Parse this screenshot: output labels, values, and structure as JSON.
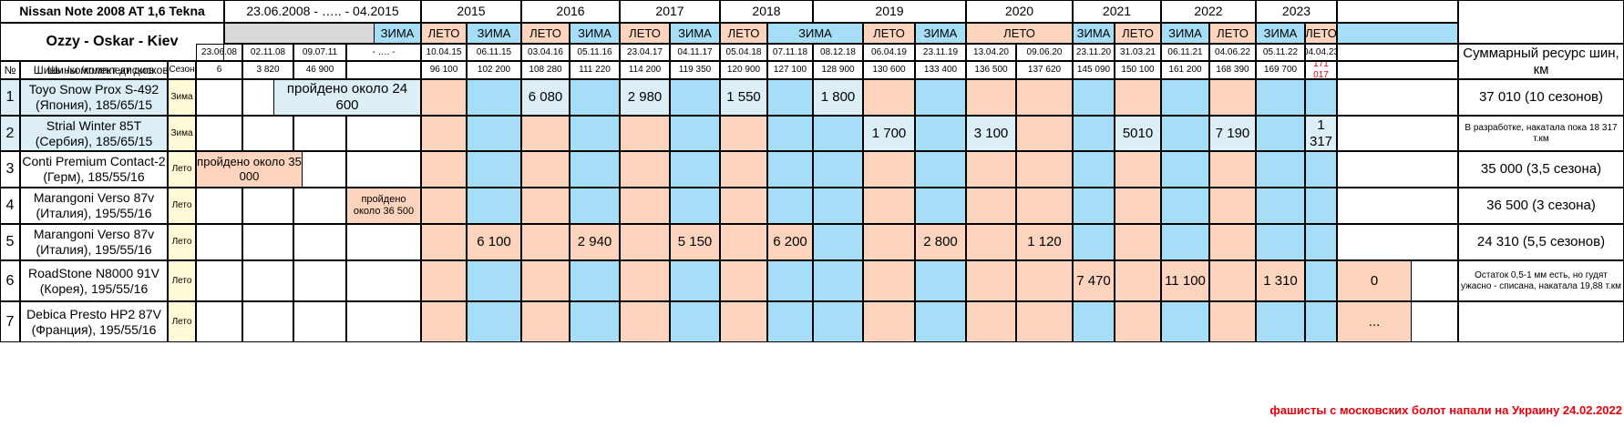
{
  "title": "Nissan Note 2008 AT 1,6 Tekna",
  "owner": "Ozzy - Oskar - Kiev",
  "period": "23.06.2008 - ….. - 04.2015",
  "years": [
    "2015",
    "2016",
    "2017",
    "2018",
    "2019",
    "2020",
    "2021",
    "2022",
    "2023"
  ],
  "season_labels": {
    "zima": "ЗИМА",
    "leto": "ЛЕТО"
  },
  "header": {
    "num": "№",
    "tires": "Шины /комплект дисков",
    "season": "Сезон",
    "total": "Суммарный ресурс шин, км"
  },
  "dates": [
    "23.06.08",
    "02.11.08",
    "09.07.11",
    "- …. -",
    "10.04.15",
    "06.11.15",
    "03.04.16",
    "05.11.16",
    "23.04.17",
    "04.11.17",
    "05.04.18",
    "07.11.18",
    "08.12.18",
    "06.04.19",
    "23.11.19",
    "13.04.20",
    "09.06.20",
    "23.11.20",
    "31.03.21",
    "06.11.21",
    "04.06.22",
    "05.11.22",
    "04.04.23"
  ],
  "odometer": [
    "6",
    "3 820",
    "46 900",
    "",
    "96 100",
    "102 200",
    "108 280",
    "111 220",
    "114 200",
    "119 350",
    "120 900",
    "127 100",
    "128 900",
    "130 600",
    "133 400",
    "136 500",
    "137 620",
    "145 090",
    "150 100",
    "161 200",
    "168 390",
    "169 700",
    "171 017"
  ],
  "rows": [
    {
      "num": "1",
      "tire": "Toyo Snow Prox S-492 (Япония), 185/65/15",
      "season": "Зима",
      "total": "37 010 (10 сезонов)",
      "note": "пройдено около 24 600",
      "values": {
        "z2016": "6 080",
        "z2017": "2 980",
        "z2018": "1 550",
        "z2019": "1 800"
      }
    },
    {
      "num": "2",
      "tire": "Strial Winter 85T (Сербия), 185/65/15",
      "season": "Зима",
      "total": "В разработке, накатала пока 18 317  т.км",
      "values": {
        "z2019": "1 700",
        "z2020": "3 100",
        "z2021": "5010",
        "z2022": "7 190",
        "z2023": "1 317"
      }
    },
    {
      "num": "3",
      "tire": "Conti Premium Contact-2  (Герм), 185/55/16",
      "season": "Лето",
      "total": "35 000 (3,5 сезона)",
      "note": "пройдено около 35 000"
    },
    {
      "num": "4",
      "tire": "Marangoni Verso 87v (Италия), 195/55/16",
      "season": "Лето",
      "total": "36 500 (3 сезона)",
      "note": "пройдено около 36 500"
    },
    {
      "num": "5",
      "tire": "Marangoni Verso 87v (Италия), 195/55/16",
      "season": "Лето",
      "total": "24 310 (5,5 сезонов)",
      "values": {
        "l2015": "6 100",
        "l2016": "2 940",
        "l2017": "5 150",
        "l2018": "6 200",
        "l2019": "2 800",
        "l2020a": "1 120"
      }
    },
    {
      "num": "6",
      "tire": "RoadStone N8000 91V (Корея), 195/55/16",
      "season": "Лето",
      "total": "Остаток 0,5-1 мм есть, но гудят ужасно - списана, накатала 19,88 т.км",
      "values": {
        "l2020b": "7 470",
        "l2021": "11 100",
        "l2022": "1 310",
        "l2023": "0"
      }
    },
    {
      "num": "7",
      "tire": "Debica Presto HP2 87V (Франция), 195/55/16",
      "season": "Лето",
      "total": "",
      "values": {
        "l2023": "..."
      }
    }
  ],
  "footer": "фашисты с московских болот напали на Украину 24.02.2022",
  "colors": {
    "summer": "#fcd4bd",
    "winter": "#a7def7",
    "light": "#dceff6",
    "gray": "#d9d9d9",
    "yellow": "#fffbd6",
    "red": "#e8000c"
  }
}
